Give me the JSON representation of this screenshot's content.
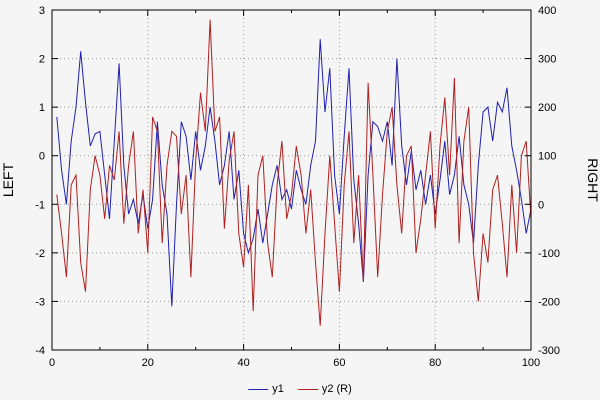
{
  "chart_data": {
    "type": "line",
    "title": "",
    "xlabel": "",
    "grid": true,
    "grid_color": "#999999",
    "background": "#f5f5f5",
    "legend_position": "bottom-center",
    "x_axis": {
      "min": 0,
      "max": 100,
      "major_ticks": [
        0,
        20,
        40,
        60,
        80,
        100
      ],
      "minor_ticks": [
        10,
        30,
        50,
        70,
        90
      ]
    },
    "y_left": {
      "label": "LEFT",
      "min": -4,
      "max": 3,
      "ticks": [
        -4,
        -3,
        -2,
        -1,
        0,
        1,
        2,
        3
      ]
    },
    "y_right": {
      "label": "RIGHT",
      "min": -300,
      "max": 400,
      "ticks": [
        -300,
        -200,
        -100,
        0,
        100,
        200,
        300,
        400
      ]
    },
    "x_values": [
      1,
      2,
      3,
      4,
      5,
      6,
      7,
      8,
      9,
      10,
      11,
      12,
      13,
      14,
      15,
      16,
      17,
      18,
      19,
      20,
      21,
      22,
      23,
      24,
      25,
      26,
      27,
      28,
      29,
      30,
      31,
      32,
      33,
      34,
      35,
      36,
      37,
      38,
      39,
      40,
      41,
      42,
      43,
      44,
      45,
      46,
      47,
      48,
      49,
      50,
      51,
      52,
      53,
      54,
      55,
      56,
      57,
      58,
      59,
      60,
      61,
      62,
      63,
      64,
      65,
      66,
      67,
      68,
      69,
      70,
      71,
      72,
      73,
      74,
      75,
      76,
      77,
      78,
      79,
      80,
      81,
      82,
      83,
      84,
      85,
      86,
      87,
      88,
      89,
      90,
      91,
      92,
      93,
      94,
      95,
      96,
      97,
      98,
      99,
      100
    ],
    "series": [
      {
        "name": "y1",
        "axis": "left",
        "color": "#2020b0",
        "values": [
          0.8,
          -0.3,
          -1.0,
          0.3,
          1.0,
          2.15,
          1.1,
          0.2,
          0.45,
          0.5,
          -0.4,
          -1.3,
          0.3,
          1.9,
          -0.2,
          -1.2,
          -0.9,
          -1.4,
          -0.8,
          -1.5,
          -0.9,
          0.7,
          -0.6,
          -1.2,
          -3.1,
          -1.0,
          0.7,
          0.4,
          -0.5,
          0.5,
          -0.3,
          0.2,
          1.0,
          0.3,
          -0.6,
          -0.2,
          0.5,
          -0.9,
          -0.3,
          -1.6,
          -2.0,
          -1.7,
          -1.1,
          -1.8,
          -1.2,
          -0.6,
          -0.2,
          -0.9,
          -0.7,
          -1.1,
          -0.3,
          -0.7,
          -1.0,
          -0.2,
          0.3,
          2.4,
          0.9,
          1.8,
          -0.4,
          -1.2,
          0.4,
          1.8,
          -0.5,
          -1.4,
          -2.6,
          -0.4,
          0.7,
          0.6,
          0.3,
          0.7,
          -0.2,
          2.0,
          0.2,
          -0.6,
          0.1,
          -0.7,
          -0.3,
          -1.0,
          -0.4,
          -1.2,
          -0.5,
          0.3,
          -0.8,
          -0.4,
          0.4,
          -0.6,
          -1.0,
          -1.8,
          -0.2,
          0.9,
          1.0,
          0.3,
          1.1,
          0.9,
          1.4,
          0.2,
          -0.3,
          -0.9,
          -1.6,
          -1.1
        ]
      },
      {
        "name": "y2 (R)",
        "axis": "right",
        "color": "#b02020",
        "values": [
          20,
          -60,
          -150,
          40,
          60,
          -120,
          -180,
          30,
          100,
          60,
          -30,
          80,
          50,
          150,
          -40,
          80,
          150,
          -60,
          30,
          -100,
          180,
          150,
          -80,
          80,
          150,
          140,
          -20,
          60,
          -150,
          90,
          230,
          150,
          380,
          150,
          180,
          -50,
          90,
          150,
          -60,
          -130,
          40,
          -220,
          60,
          100,
          -80,
          -150,
          40,
          130,
          -30,
          20,
          120,
          60,
          -60,
          30,
          -120,
          -250,
          -60,
          100,
          -40,
          -180,
          40,
          150,
          -80,
          60,
          -160,
          250,
          60,
          -150,
          20,
          150,
          200,
          40,
          -60,
          100,
          120,
          -100,
          -30,
          60,
          150,
          -50,
          120,
          220,
          60,
          260,
          -80,
          130,
          200,
          -100,
          -200,
          -60,
          -120,
          30,
          60,
          -40,
          -150,
          40,
          -100,
          100,
          130,
          -30
        ]
      }
    ]
  }
}
